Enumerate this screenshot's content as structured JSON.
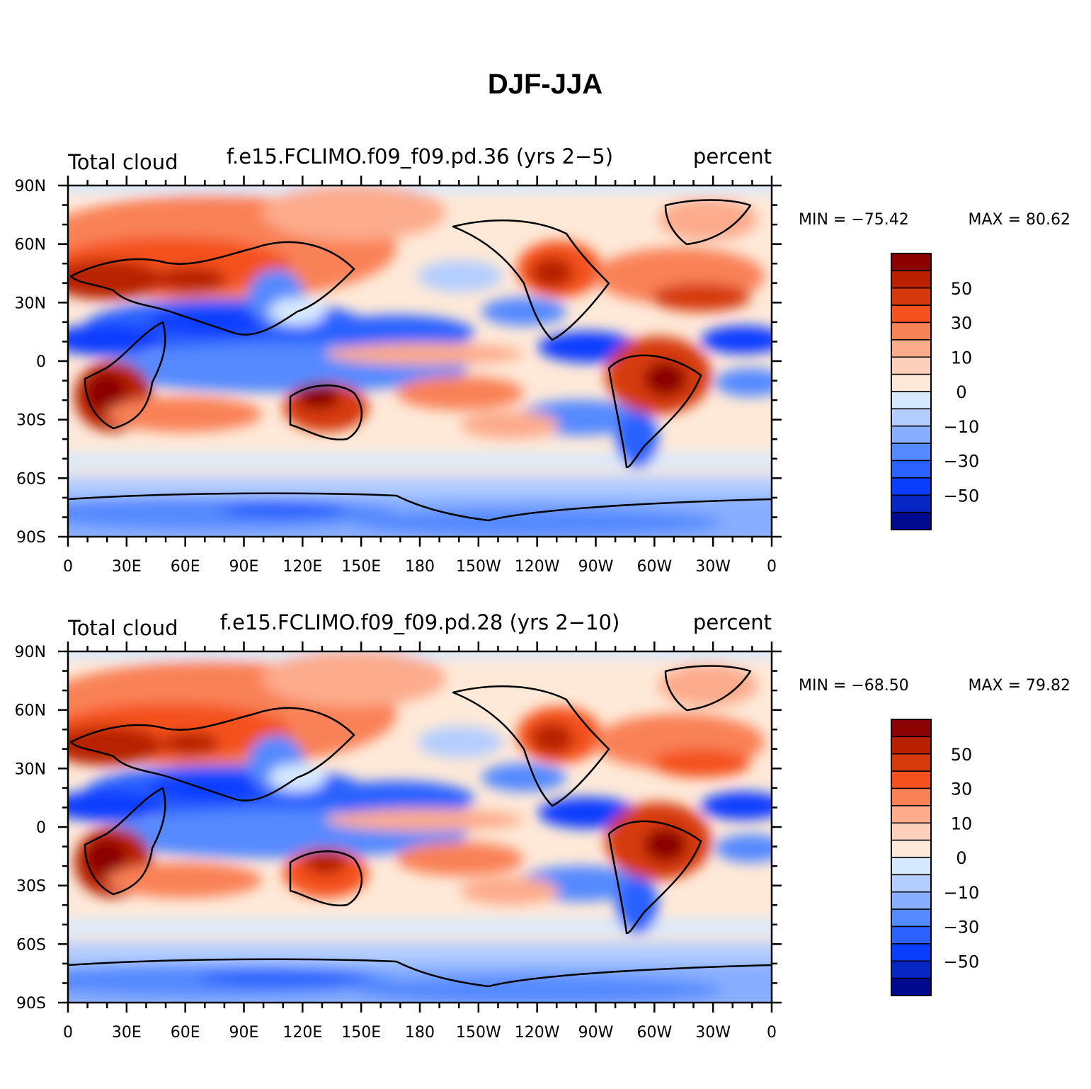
{
  "figure": {
    "title": "DJF-JJA"
  },
  "axes": {
    "x_ticks": [
      "0",
      "30E",
      "60E",
      "90E",
      "120E",
      "150E",
      "180",
      "150W",
      "120W",
      "90W",
      "60W",
      "30W",
      "0"
    ],
    "y_ticks": [
      "90N",
      "60N",
      "30N",
      "0",
      "30S",
      "60S",
      "90S"
    ]
  },
  "colorbar": {
    "labels": [
      "50",
      "30",
      "10",
      "0",
      "−10",
      "−30",
      "−50"
    ],
    "colors": [
      "#8b0000",
      "#b82000",
      "#d63a0c",
      "#f4511e",
      "#f98156",
      "#fcab8c",
      "#fdd0bb",
      "#fee9d8",
      "#d6e9ff",
      "#b3cdff",
      "#87aeff",
      "#5589ff",
      "#2b62ff",
      "#0a3dff",
      "#0627c4",
      "#000a90"
    ]
  },
  "panels": [
    {
      "left_label": "Total cloud",
      "center_label": "f.e15.FCLIMO.f09_f09.pd.36 (yrs 2−5)",
      "right_label": "percent",
      "min_label": "MIN = −75.42",
      "max_label": "MAX =  80.62"
    },
    {
      "left_label": "Total cloud",
      "center_label": "f.e15.FCLIMO.f09_f09.pd.28 (yrs 2−10)",
      "right_label": "percent",
      "min_label": "MIN = −68.50",
      "max_label": "MAX =  79.82"
    }
  ]
}
